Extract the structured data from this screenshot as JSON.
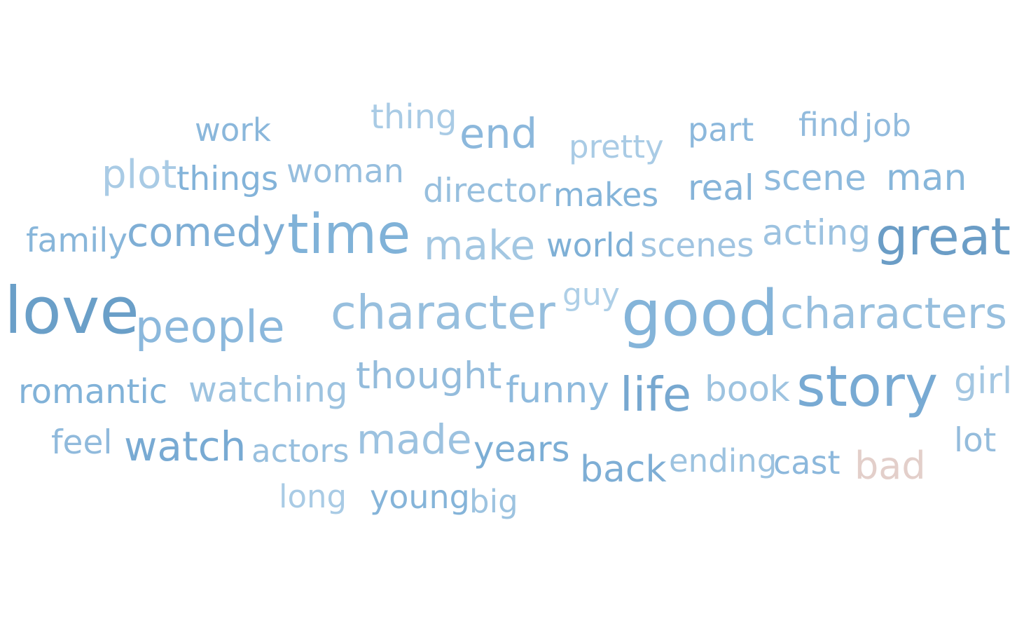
{
  "words": [
    {
      "text": "love",
      "color": "#6a9fc8"
    },
    {
      "text": "good",
      "color": "#84b4d9"
    },
    {
      "text": "time",
      "color": "#80b2d8"
    },
    {
      "text": "great",
      "color": "#6b9dc6"
    },
    {
      "text": "story",
      "color": "#78aad3"
    },
    {
      "text": "character",
      "color": "#97bfde"
    },
    {
      "text": "characters",
      "color": "#97bfde"
    },
    {
      "text": "people",
      "color": "#8bb8dc"
    },
    {
      "text": "life",
      "color": "#77a8d0"
    },
    {
      "text": "make",
      "color": "#a3c7e2"
    },
    {
      "text": "made",
      "color": "#9cc2e0"
    },
    {
      "text": "comedy",
      "color": "#7eaed5"
    },
    {
      "text": "watch",
      "color": "#78aad3"
    },
    {
      "text": "thought",
      "color": "#94bcdc"
    },
    {
      "text": "end",
      "color": "#8cb8dc"
    },
    {
      "text": "watching",
      "color": "#9dc3e0"
    },
    {
      "text": "funny",
      "color": "#8ebadd"
    },
    {
      "text": "scene",
      "color": "#8ebadd"
    },
    {
      "text": "man",
      "color": "#87b6da"
    },
    {
      "text": "romantic",
      "color": "#81b2d8"
    },
    {
      "text": "book",
      "color": "#9dc3e0"
    },
    {
      "text": "bad",
      "color": "#e3cfca"
    },
    {
      "text": "back",
      "color": "#7eaed5"
    },
    {
      "text": "years",
      "color": "#7caed5"
    },
    {
      "text": "acting",
      "color": "#9cc2e0"
    },
    {
      "text": "plot",
      "color": "#a9cbe5"
    },
    {
      "text": "real",
      "color": "#86b4d9"
    },
    {
      "text": "scenes",
      "color": "#a0c4e1"
    },
    {
      "text": "director",
      "color": "#97bfde"
    },
    {
      "text": "makes",
      "color": "#84b4d9"
    },
    {
      "text": "thing",
      "color": "#a9cbe5"
    },
    {
      "text": "woman",
      "color": "#96bede"
    },
    {
      "text": "things",
      "color": "#83b3d9"
    },
    {
      "text": "world",
      "color": "#7fb0d6"
    },
    {
      "text": "actors",
      "color": "#97bfde"
    },
    {
      "text": "family",
      "color": "#88b6da"
    },
    {
      "text": "girl",
      "color": "#a4c7e2"
    },
    {
      "text": "cast",
      "color": "#8cb8dc"
    },
    {
      "text": "young",
      "color": "#85b4d9"
    },
    {
      "text": "ending",
      "color": "#9dc3e0"
    },
    {
      "text": "pretty",
      "color": "#a9cbe5"
    },
    {
      "text": "part",
      "color": "#8cb8dc"
    },
    {
      "text": "find",
      "color": "#92bbdd"
    },
    {
      "text": "job",
      "color": "#92bbdd"
    },
    {
      "text": "feel",
      "color": "#90badc"
    },
    {
      "text": "lot",
      "color": "#94bcdc"
    },
    {
      "text": "long",
      "color": "#a9cbe5"
    },
    {
      "text": "big",
      "color": "#9dc3e0"
    },
    {
      "text": "work",
      "color": "#8ab7db"
    },
    {
      "text": "guy",
      "color": "#aecfe7"
    }
  ]
}
